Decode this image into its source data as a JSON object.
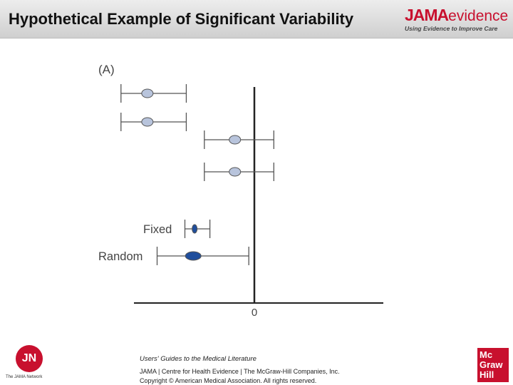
{
  "header": {
    "title": "Hypothetical Example of Significant Variability",
    "brand_part1": "JAMA",
    "brand_part2": "evidence",
    "tagline": "Using Evidence to Improve Care"
  },
  "chart_data": {
    "type": "scatter",
    "title": "",
    "panel_label": "(A)",
    "x_zero_label": "0",
    "xlabel": "",
    "ylabel": "",
    "grid": false,
    "legend": "none",
    "colors": {
      "study_point": "#b8c4dc",
      "pooled_point": "#1f4e9c",
      "line": "#555555",
      "axis": "#222222"
    },
    "rows": [
      {
        "label": "",
        "estimate": -3.85,
        "ci_low": -4.8,
        "ci_high": -2.45,
        "kind": "study"
      },
      {
        "label": "",
        "estimate": -3.85,
        "ci_low": -4.8,
        "ci_high": -2.45,
        "kind": "study"
      },
      {
        "label": "",
        "estimate": -0.7,
        "ci_low": -1.8,
        "ci_high": 0.7,
        "kind": "study"
      },
      {
        "label": "",
        "estimate": -0.7,
        "ci_low": -1.8,
        "ci_high": 0.7,
        "kind": "study"
      },
      {
        "label": "Fixed",
        "estimate": -2.15,
        "ci_low": -2.5,
        "ci_high": -1.6,
        "kind": "fixed"
      },
      {
        "label": "Random",
        "estimate": -2.2,
        "ci_low": -3.5,
        "ci_high": -0.2,
        "kind": "random"
      }
    ]
  },
  "footer": {
    "guide_title": "Users' Guides to the Medical Literature",
    "line1": "JAMA | Centre for Health Evidence | The McGraw-Hill Companies, Inc.",
    "line2": "Copyright © American Medical Association. All rights reserved.",
    "network_initials": "JN",
    "network_caption": "The JAMA Network",
    "publisher_line1": "Mc",
    "publisher_line2": "Graw",
    "publisher_line3": "Hill"
  }
}
